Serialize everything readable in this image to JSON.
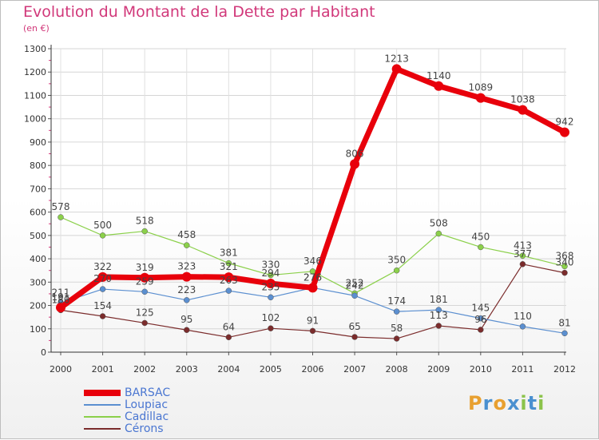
{
  "title": "Evolution du Montant de la Dette par Habitant",
  "subtitle": "(en €)",
  "logo_text": "Proxiti",
  "chart_data": {
    "type": "line",
    "x": [
      "2000",
      "2001",
      "2002",
      "2003",
      "2004",
      "2005",
      "2006",
      "2007",
      "2008",
      "2009",
      "2010",
      "2011",
      "2012"
    ],
    "ylim": [
      0,
      1300
    ],
    "yticks": [
      0,
      100,
      200,
      300,
      400,
      500,
      600,
      700,
      800,
      900,
      1000,
      1100,
      1200,
      1300
    ],
    "grid": true,
    "legend_position": "bottom-left",
    "series": [
      {
        "name": "BARSAC",
        "color": "#e8000b",
        "values": [
          191,
          322,
          319,
          323,
          321,
          294,
          276,
          806,
          1213,
          1140,
          1089,
          1038,
          942
        ]
      },
      {
        "name": "Loupiac",
        "color": "#5b8fd0",
        "values": [
          211,
          270,
          259,
          223,
          263,
          235,
          276,
          242,
          174,
          181,
          145,
          110,
          81
        ]
      },
      {
        "name": "Cadillac",
        "color": "#8bd04a",
        "values": [
          578,
          500,
          518,
          458,
          381,
          330,
          346,
          252,
          350,
          508,
          450,
          413,
          368
        ]
      },
      {
        "name": "Cérons",
        "color": "#7b2c2c",
        "values": [
          180,
          154,
          125,
          95,
          64,
          102,
          91,
          65,
          58,
          113,
          96,
          377,
          340
        ]
      }
    ],
    "data_labels": {
      "BARSAC": [
        "191",
        "322",
        "319",
        "323",
        "321",
        "294",
        "276",
        "806",
        "1213",
        "1140",
        "1089",
        "1038",
        "942"
      ],
      "Loupiac": [
        "211",
        "270",
        "259",
        "223",
        "263",
        "235",
        "276",
        "242",
        "174",
        "181",
        "145",
        "110",
        "81"
      ],
      "Cadillac": [
        "578",
        "500",
        "518",
        "458",
        "381",
        "330",
        "346",
        "252",
        "350",
        "508",
        "450",
        "413",
        "368"
      ],
      "Cérons": [
        "180",
        "154",
        "125",
        "95",
        "64",
        "102",
        "91",
        "65",
        "58",
        "113",
        "96",
        "377",
        "340"
      ]
    }
  }
}
